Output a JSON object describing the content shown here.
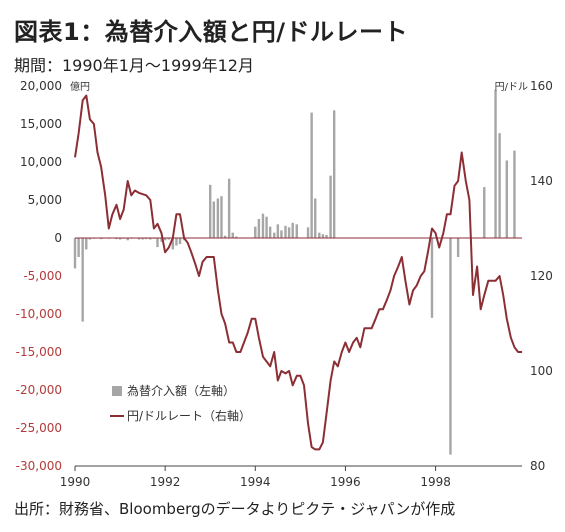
{
  "title": "図表1：為替介入額と円/ドルレート",
  "subtitle": "期間：1990年1月～1999年12月",
  "source": "出所：財務省、Bloombergのデータよりピクテ・ジャパンが作成",
  "chart_data": {
    "type": "bar+line",
    "left_axis": {
      "unit": "億円",
      "ylim": [
        -30000,
        20000
      ],
      "ticks": [
        {
          "v": 20000,
          "label": "20,000"
        },
        {
          "v": 15000,
          "label": "15,000"
        },
        {
          "v": 10000,
          "label": "10,000"
        },
        {
          "v": 5000,
          "label": "5,000"
        },
        {
          "v": 0,
          "label": "0"
        },
        {
          "v": -5000,
          "label": "-5,000"
        },
        {
          "v": -10000,
          "label": "-10,000"
        },
        {
          "v": -15000,
          "label": "-15,000"
        },
        {
          "v": -20000,
          "label": "-20,000"
        },
        {
          "v": -25000,
          "label": "-25,000"
        },
        {
          "v": -30000,
          "label": "-30,000"
        }
      ]
    },
    "right_axis": {
      "unit": "円/ドル",
      "ylim": [
        80,
        160
      ],
      "ticks": [
        {
          "v": 160,
          "label": "160"
        },
        {
          "v": 140,
          "label": "140"
        },
        {
          "v": 120,
          "label": "120"
        },
        {
          "v": 100,
          "label": "100"
        },
        {
          "v": 80,
          "label": "80"
        }
      ]
    },
    "x_axis": {
      "range": [
        1990.0,
        1999.917
      ],
      "ticks": [
        {
          "v": 1990,
          "label": "1990"
        },
        {
          "v": 1992,
          "label": "1992"
        },
        {
          "v": 1994,
          "label": "1994"
        },
        {
          "v": 1996,
          "label": "1996"
        },
        {
          "v": 1998,
          "label": "1998"
        }
      ]
    },
    "legend_position": "bottom-left",
    "bar_color": "#a6a6a6",
    "line_color": "#8b2f35",
    "series": [
      {
        "name": "為替介入額（左軸）",
        "kind": "bar",
        "axis": "left",
        "points": [
          {
            "x": 1990.0,
            "y": -4000
          },
          {
            "x": 1990.08,
            "y": -2500
          },
          {
            "x": 1990.17,
            "y": -11000
          },
          {
            "x": 1990.25,
            "y": -1500
          },
          {
            "x": 1990.33,
            "y": -200
          },
          {
            "x": 1990.42,
            "y": -100
          },
          {
            "x": 1990.58,
            "y": -150
          },
          {
            "x": 1990.75,
            "y": -100
          },
          {
            "x": 1990.92,
            "y": -150
          },
          {
            "x": 1991.0,
            "y": -200
          },
          {
            "x": 1991.08,
            "y": -100
          },
          {
            "x": 1991.17,
            "y": -300
          },
          {
            "x": 1991.25,
            "y": -100
          },
          {
            "x": 1991.42,
            "y": -200
          },
          {
            "x": 1991.5,
            "y": -200
          },
          {
            "x": 1991.58,
            "y": -150
          },
          {
            "x": 1991.67,
            "y": -200
          },
          {
            "x": 1991.75,
            "y": -100
          },
          {
            "x": 1991.83,
            "y": -1200
          },
          {
            "x": 1991.92,
            "y": -500
          },
          {
            "x": 1992.0,
            "y": -300
          },
          {
            "x": 1992.08,
            "y": -200
          },
          {
            "x": 1992.17,
            "y": -1500
          },
          {
            "x": 1992.25,
            "y": -1000
          },
          {
            "x": 1992.33,
            "y": -800
          },
          {
            "x": 1992.42,
            "y": -300
          },
          {
            "x": 1993.0,
            "y": 7000
          },
          {
            "x": 1993.08,
            "y": 4800
          },
          {
            "x": 1993.17,
            "y": 5200
          },
          {
            "x": 1993.25,
            "y": 5500
          },
          {
            "x": 1993.33,
            "y": 300
          },
          {
            "x": 1993.42,
            "y": 7800
          },
          {
            "x": 1993.5,
            "y": 700
          },
          {
            "x": 1993.58,
            "y": 200
          },
          {
            "x": 1994.0,
            "y": 1500
          },
          {
            "x": 1994.08,
            "y": 2500
          },
          {
            "x": 1994.17,
            "y": 3200
          },
          {
            "x": 1994.25,
            "y": 2800
          },
          {
            "x": 1994.33,
            "y": 1500
          },
          {
            "x": 1994.42,
            "y": 700
          },
          {
            "x": 1994.5,
            "y": 1800
          },
          {
            "x": 1994.58,
            "y": 1000
          },
          {
            "x": 1994.67,
            "y": 1600
          },
          {
            "x": 1994.75,
            "y": 1400
          },
          {
            "x": 1994.83,
            "y": 2000
          },
          {
            "x": 1994.92,
            "y": 1800
          },
          {
            "x": 1995.17,
            "y": 1400
          },
          {
            "x": 1995.25,
            "y": 16500
          },
          {
            "x": 1995.33,
            "y": 5200
          },
          {
            "x": 1995.42,
            "y": 700
          },
          {
            "x": 1995.5,
            "y": 500
          },
          {
            "x": 1995.58,
            "y": 400
          },
          {
            "x": 1995.67,
            "y": 8200
          },
          {
            "x": 1995.75,
            "y": 16800
          },
          {
            "x": 1997.92,
            "y": -10500
          },
          {
            "x": 1998.33,
            "y": -28500
          },
          {
            "x": 1998.5,
            "y": -2500
          },
          {
            "x": 1999.08,
            "y": 6700
          },
          {
            "x": 1999.33,
            "y": 19500
          },
          {
            "x": 1999.42,
            "y": 13800
          },
          {
            "x": 1999.58,
            "y": 10200
          },
          {
            "x": 1999.75,
            "y": 11500
          }
        ]
      },
      {
        "name": "円/ドルレート（右軸）",
        "kind": "line",
        "axis": "right",
        "points": [
          {
            "x": 1990.0,
            "y": 145
          },
          {
            "x": 1990.08,
            "y": 150
          },
          {
            "x": 1990.17,
            "y": 157
          },
          {
            "x": 1990.25,
            "y": 158
          },
          {
            "x": 1990.33,
            "y": 153
          },
          {
            "x": 1990.42,
            "y": 152
          },
          {
            "x": 1990.5,
            "y": 146
          },
          {
            "x": 1990.58,
            "y": 143
          },
          {
            "x": 1990.67,
            "y": 137
          },
          {
            "x": 1990.75,
            "y": 130
          },
          {
            "x": 1990.83,
            "y": 133
          },
          {
            "x": 1990.92,
            "y": 135
          },
          {
            "x": 1991.0,
            "y": 132
          },
          {
            "x": 1991.08,
            "y": 134
          },
          {
            "x": 1991.17,
            "y": 140
          },
          {
            "x": 1991.25,
            "y": 137
          },
          {
            "x": 1991.33,
            "y": 138
          },
          {
            "x": 1991.42,
            "y": 137.5
          },
          {
            "x": 1991.58,
            "y": 137
          },
          {
            "x": 1991.67,
            "y": 136
          },
          {
            "x": 1991.75,
            "y": 130
          },
          {
            "x": 1991.83,
            "y": 131
          },
          {
            "x": 1991.92,
            "y": 129
          },
          {
            "x": 1992.0,
            "y": 125
          },
          {
            "x": 1992.08,
            "y": 126
          },
          {
            "x": 1992.17,
            "y": 128
          },
          {
            "x": 1992.25,
            "y": 133
          },
          {
            "x": 1992.33,
            "y": 133
          },
          {
            "x": 1992.42,
            "y": 128
          },
          {
            "x": 1992.5,
            "y": 127
          },
          {
            "x": 1992.58,
            "y": 125
          },
          {
            "x": 1992.67,
            "y": 122.5
          },
          {
            "x": 1992.75,
            "y": 120
          },
          {
            "x": 1992.83,
            "y": 123
          },
          {
            "x": 1992.92,
            "y": 124
          },
          {
            "x": 1993.0,
            "y": 124
          },
          {
            "x": 1993.08,
            "y": 124
          },
          {
            "x": 1993.17,
            "y": 117
          },
          {
            "x": 1993.25,
            "y": 112
          },
          {
            "x": 1993.33,
            "y": 110
          },
          {
            "x": 1993.42,
            "y": 106
          },
          {
            "x": 1993.5,
            "y": 106
          },
          {
            "x": 1993.58,
            "y": 104
          },
          {
            "x": 1993.67,
            "y": 104
          },
          {
            "x": 1993.75,
            "y": 106
          },
          {
            "x": 1993.83,
            "y": 108
          },
          {
            "x": 1993.92,
            "y": 111
          },
          {
            "x": 1994.0,
            "y": 111
          },
          {
            "x": 1994.08,
            "y": 107
          },
          {
            "x": 1994.17,
            "y": 103
          },
          {
            "x": 1994.25,
            "y": 102
          },
          {
            "x": 1994.33,
            "y": 101
          },
          {
            "x": 1994.42,
            "y": 104
          },
          {
            "x": 1994.5,
            "y": 98
          },
          {
            "x": 1994.58,
            "y": 100
          },
          {
            "x": 1994.67,
            "y": 99.5
          },
          {
            "x": 1994.75,
            "y": 100
          },
          {
            "x": 1994.83,
            "y": 97
          },
          {
            "x": 1994.92,
            "y": 99
          },
          {
            "x": 1995.0,
            "y": 99
          },
          {
            "x": 1995.08,
            "y": 97
          },
          {
            "x": 1995.17,
            "y": 89
          },
          {
            "x": 1995.25,
            "y": 84
          },
          {
            "x": 1995.33,
            "y": 83.5
          },
          {
            "x": 1995.42,
            "y": 83.5
          },
          {
            "x": 1995.5,
            "y": 85
          },
          {
            "x": 1995.58,
            "y": 91
          },
          {
            "x": 1995.67,
            "y": 98
          },
          {
            "x": 1995.75,
            "y": 102
          },
          {
            "x": 1995.83,
            "y": 101
          },
          {
            "x": 1995.92,
            "y": 104
          },
          {
            "x": 1996.0,
            "y": 106
          },
          {
            "x": 1996.08,
            "y": 104
          },
          {
            "x": 1996.17,
            "y": 106
          },
          {
            "x": 1996.25,
            "y": 107
          },
          {
            "x": 1996.33,
            "y": 105
          },
          {
            "x": 1996.42,
            "y": 109
          },
          {
            "x": 1996.5,
            "y": 109
          },
          {
            "x": 1996.58,
            "y": 109
          },
          {
            "x": 1996.67,
            "y": 111
          },
          {
            "x": 1996.75,
            "y": 113
          },
          {
            "x": 1996.83,
            "y": 113
          },
          {
            "x": 1996.92,
            "y": 115
          },
          {
            "x": 1997.0,
            "y": 117
          },
          {
            "x": 1997.08,
            "y": 120
          },
          {
            "x": 1997.17,
            "y": 122
          },
          {
            "x": 1997.25,
            "y": 124
          },
          {
            "x": 1997.33,
            "y": 119
          },
          {
            "x": 1997.42,
            "y": 114
          },
          {
            "x": 1997.5,
            "y": 117
          },
          {
            "x": 1997.58,
            "y": 118
          },
          {
            "x": 1997.67,
            "y": 120
          },
          {
            "x": 1997.75,
            "y": 121
          },
          {
            "x": 1997.83,
            "y": 125
          },
          {
            "x": 1997.92,
            "y": 130
          },
          {
            "x": 1998.0,
            "y": 129
          },
          {
            "x": 1998.08,
            "y": 126
          },
          {
            "x": 1998.17,
            "y": 129
          },
          {
            "x": 1998.25,
            "y": 133
          },
          {
            "x": 1998.33,
            "y": 133
          },
          {
            "x": 1998.42,
            "y": 139
          },
          {
            "x": 1998.5,
            "y": 140
          },
          {
            "x": 1998.58,
            "y": 146
          },
          {
            "x": 1998.67,
            "y": 140
          },
          {
            "x": 1998.75,
            "y": 136
          },
          {
            "x": 1998.83,
            "y": 116
          },
          {
            "x": 1998.92,
            "y": 122
          },
          {
            "x": 1999.0,
            "y": 113
          },
          {
            "x": 1999.08,
            "y": 116
          },
          {
            "x": 1999.17,
            "y": 119
          },
          {
            "x": 1999.25,
            "y": 119
          },
          {
            "x": 1999.33,
            "y": 119
          },
          {
            "x": 1999.42,
            "y": 120
          },
          {
            "x": 1999.5,
            "y": 116
          },
          {
            "x": 1999.58,
            "y": 111
          },
          {
            "x": 1999.67,
            "y": 107
          },
          {
            "x": 1999.75,
            "y": 105
          },
          {
            "x": 1999.83,
            "y": 104
          },
          {
            "x": 1999.92,
            "y": 104
          }
        ]
      }
    ]
  }
}
